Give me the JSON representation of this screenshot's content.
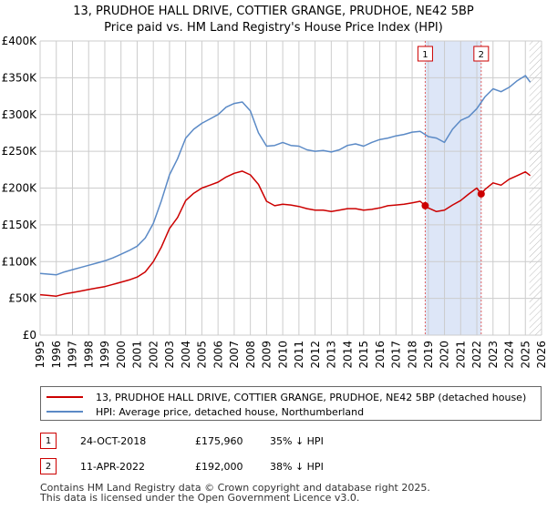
{
  "chart_data": {
    "type": "line",
    "title": "13, PRUDHOE HALL DRIVE, COTTIER GRANGE, PRUDHOE, NE42 5BP",
    "subtitle": "Price paid vs. HM Land Registry's House Price Index (HPI)",
    "xlim": [
      1995,
      2026
    ],
    "ylim": [
      0,
      400000
    ],
    "x_ticks": [
      "1995",
      "1996",
      "1997",
      "1998",
      "1999",
      "2000",
      "2001",
      "2002",
      "2003",
      "2004",
      "2005",
      "2006",
      "2007",
      "2008",
      "2009",
      "2010",
      "2011",
      "2012",
      "2013",
      "2014",
      "2015",
      "2016",
      "2017",
      "2018",
      "2019",
      "2020",
      "2021",
      "2022",
      "2023",
      "2024",
      "2025",
      "2026"
    ],
    "y_ticks": [
      {
        "value": 0,
        "label": "£0"
      },
      {
        "value": 50000,
        "label": "£50K"
      },
      {
        "value": 100000,
        "label": "£100K"
      },
      {
        "value": 150000,
        "label": "£150K"
      },
      {
        "value": 200000,
        "label": "£200K"
      },
      {
        "value": 250000,
        "label": "£250K"
      },
      {
        "value": 300000,
        "label": "£300K"
      },
      {
        "value": 350000,
        "label": "£350K"
      },
      {
        "value": 400000,
        "label": "£400K"
      }
    ],
    "grid": true,
    "series": [
      {
        "name": "13, PRUDHOE HALL DRIVE, COTTIER GRANGE, PRUDHOE, NE42 5BP (detached house)",
        "color": "#cc0000",
        "x": [
          1995.0,
          1995.5,
          1996.0,
          1996.5,
          1997.0,
          1997.5,
          1998.0,
          1998.5,
          1999.0,
          1999.5,
          2000.0,
          2000.5,
          2001.0,
          2001.5,
          2002.0,
          2002.5,
          2003.0,
          2003.5,
          2004.0,
          2004.5,
          2005.0,
          2005.5,
          2006.0,
          2006.5,
          2007.0,
          2007.5,
          2008.0,
          2008.5,
          2009.0,
          2009.5,
          2010.0,
          2010.5,
          2011.0,
          2011.5,
          2012.0,
          2012.5,
          2013.0,
          2013.5,
          2014.0,
          2014.5,
          2015.0,
          2015.5,
          2016.0,
          2016.5,
          2017.0,
          2017.5,
          2018.0,
          2018.5,
          2018.81,
          2019.0,
          2019.5,
          2020.0,
          2020.5,
          2021.0,
          2021.5,
          2022.0,
          2022.27,
          2022.5,
          2023.0,
          2023.5,
          2024.0,
          2024.5,
          2025.0,
          2025.3
        ],
        "values": [
          55000,
          54000,
          53000,
          56000,
          58000,
          60000,
          62000,
          64000,
          66000,
          69000,
          72000,
          75000,
          79000,
          86000,
          100000,
          120000,
          145000,
          160000,
          183000,
          193000,
          200000,
          204000,
          208000,
          215000,
          220000,
          223000,
          218000,
          205000,
          182000,
          176000,
          178000,
          177000,
          175000,
          172000,
          170000,
          170000,
          168000,
          170000,
          172000,
          172000,
          170000,
          171000,
          173000,
          176000,
          177000,
          178000,
          180000,
          182000,
          175960,
          173000,
          168000,
          170000,
          177000,
          183000,
          192000,
          200000,
          192000,
          198000,
          207000,
          204000,
          212000,
          217000,
          222000,
          217000
        ]
      },
      {
        "name": "HPI: Average price, detached house, Northumberland",
        "color": "#5b8ac6",
        "x": [
          1995.0,
          1995.5,
          1996.0,
          1996.5,
          1997.0,
          1997.5,
          1998.0,
          1998.5,
          1999.0,
          1999.5,
          2000.0,
          2000.5,
          2001.0,
          2001.5,
          2002.0,
          2002.5,
          2003.0,
          2003.5,
          2004.0,
          2004.5,
          2005.0,
          2005.5,
          2006.0,
          2006.5,
          2007.0,
          2007.5,
          2008.0,
          2008.5,
          2009.0,
          2009.5,
          2010.0,
          2010.5,
          2011.0,
          2011.5,
          2012.0,
          2012.5,
          2013.0,
          2013.5,
          2014.0,
          2014.5,
          2015.0,
          2015.5,
          2016.0,
          2016.5,
          2017.0,
          2017.5,
          2018.0,
          2018.5,
          2019.0,
          2019.5,
          2020.0,
          2020.5,
          2021.0,
          2021.5,
          2022.0,
          2022.5,
          2023.0,
          2023.5,
          2024.0,
          2024.5,
          2025.0,
          2025.3
        ],
        "values": [
          84000,
          83000,
          82000,
          86000,
          89000,
          92000,
          95000,
          98000,
          101000,
          105000,
          110000,
          115000,
          121000,
          132000,
          152000,
          183000,
          218000,
          240000,
          268000,
          280000,
          288000,
          294000,
          300000,
          310000,
          315000,
          317000,
          305000,
          275000,
          257000,
          258000,
          262000,
          258000,
          257000,
          252000,
          250000,
          251000,
          249000,
          252000,
          258000,
          260000,
          257000,
          262000,
          266000,
          268000,
          271000,
          273000,
          276000,
          277000,
          270000,
          268000,
          262000,
          280000,
          292000,
          297000,
          308000,
          324000,
          335000,
          331000,
          337000,
          346000,
          353000,
          344000
        ]
      }
    ],
    "transactions": [
      {
        "label": "1",
        "x": 2018.81,
        "value": 175960,
        "date": "24-OCT-2018",
        "price": "£175,960",
        "hpi_note": "35% ↓ HPI"
      },
      {
        "label": "2",
        "x": 2022.27,
        "value": 192000,
        "date": "11-APR-2022",
        "price": "£192,000",
        "hpi_note": "38% ↓ HPI"
      }
    ]
  },
  "footer": {
    "line1": "Contains HM Land Registry data © Crown copyright and database right 2025.",
    "line2": "This data is licensed under the Open Government Licence v3.0."
  },
  "colors": {
    "property_line": "#cc0000",
    "hpi_line": "#5b8ac6",
    "shade": "#dde6f7",
    "grid": "#cccccc"
  }
}
